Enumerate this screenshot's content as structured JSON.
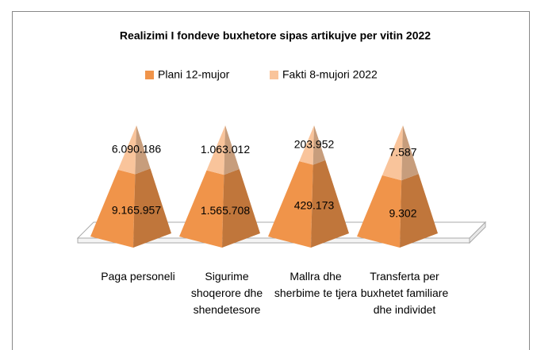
{
  "chart_data": {
    "type": "pyramid",
    "title": "Realizimi I fondeve buxhetore sipas artikujve per vitin 2022",
    "categories": [
      "Paga personeli",
      "Sigurime shoqerore dhe shendetesore",
      "Mallra dhe sherbime te tjera",
      "Transferta per buxhetet familiare dhe individet"
    ],
    "stacked": "percent",
    "legend": "top",
    "series": [
      {
        "name": "Plani 12-mujor",
        "color": "#f0944a",
        "values": [
          9165957,
          1565708,
          429173,
          9302
        ],
        "value_labels": [
          "9.165.957",
          "1.565.708",
          "429.173",
          "9.302"
        ]
      },
      {
        "name": "Fakti 8-mujori  2022",
        "color": "#f9c49b",
        "values": [
          6090186,
          1063012,
          203952,
          7587
        ],
        "value_labels": [
          "6.090.186",
          "1.063.012",
          "203.952",
          "7.587"
        ]
      }
    ]
  }
}
